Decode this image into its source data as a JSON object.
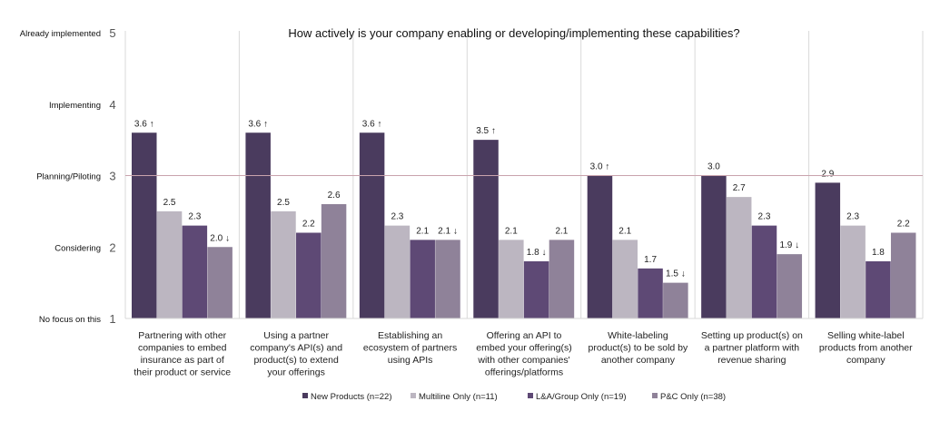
{
  "chart_data": {
    "type": "bar",
    "title": "How actively is your company enabling or developing/implementing these capabilities?",
    "ylim": [
      1,
      5
    ],
    "yticks": [
      {
        "value": 5,
        "name": "Already implemented"
      },
      {
        "value": 4,
        "name": "Implementing"
      },
      {
        "value": 3,
        "name": "Planning/Piloting"
      },
      {
        "value": 2,
        "name": "Considering"
      },
      {
        "value": 1,
        "name": "No focus on this"
      }
    ],
    "reference_line": 3,
    "categories": [
      [
        "Partnering with other",
        "companies to embed",
        "insurance as part of",
        "their product or service"
      ],
      [
        "Using a partner",
        "company's API(s) and",
        "product(s) to extend",
        "your offerings"
      ],
      [
        "Establishing an",
        "ecosystem of partners",
        "using APIs"
      ],
      [
        "Offering an API to",
        "embed your offering(s)",
        "with other companies'",
        "offerings/platforms"
      ],
      [
        "White-labeling",
        "product(s) to be sold by",
        "another company"
      ],
      [
        "Setting up product(s) on",
        "a partner platform with",
        "revenue sharing"
      ],
      [
        "Selling white-label",
        "products from another",
        "company"
      ]
    ],
    "series": [
      {
        "name": "New Products (n=22)",
        "color": "#4a3b5e",
        "values": [
          3.6,
          3.6,
          3.6,
          3.5,
          3.0,
          3.0,
          2.9
        ],
        "labels": [
          "3.6 ↑",
          "3.6 ↑",
          "3.6 ↑",
          "3.5 ↑",
          "3.0 ↑",
          "3.0",
          "2.9"
        ]
      },
      {
        "name": "Multiline Only (n=11)",
        "color": "#bcb6c1",
        "values": [
          2.5,
          2.5,
          2.3,
          2.1,
          2.1,
          2.7,
          2.3
        ],
        "labels": [
          "2.5",
          "2.5",
          "2.3",
          "2.1",
          "2.1",
          "2.7",
          "2.3"
        ]
      },
      {
        "name": "L&A/Group Only (n=19)",
        "color": "#5e4975",
        "values": [
          2.3,
          2.2,
          2.1,
          1.8,
          1.7,
          2.3,
          1.8
        ],
        "labels": [
          "2.3",
          "2.2",
          "2.1",
          "1.8 ↓",
          "1.7",
          "2.3",
          "1.8"
        ]
      },
      {
        "name": "P&C Only (n=38)",
        "color": "#8f8299",
        "values": [
          2.0,
          2.6,
          2.1,
          2.1,
          1.5,
          1.9,
          2.2
        ],
        "labels": [
          "2.0 ↓",
          "2.6",
          "2.1 ↓",
          "2.1",
          "1.5 ↓",
          "1.9 ↓",
          "2.2"
        ]
      }
    ],
    "legend_position": "bottom-center",
    "grid": false
  }
}
